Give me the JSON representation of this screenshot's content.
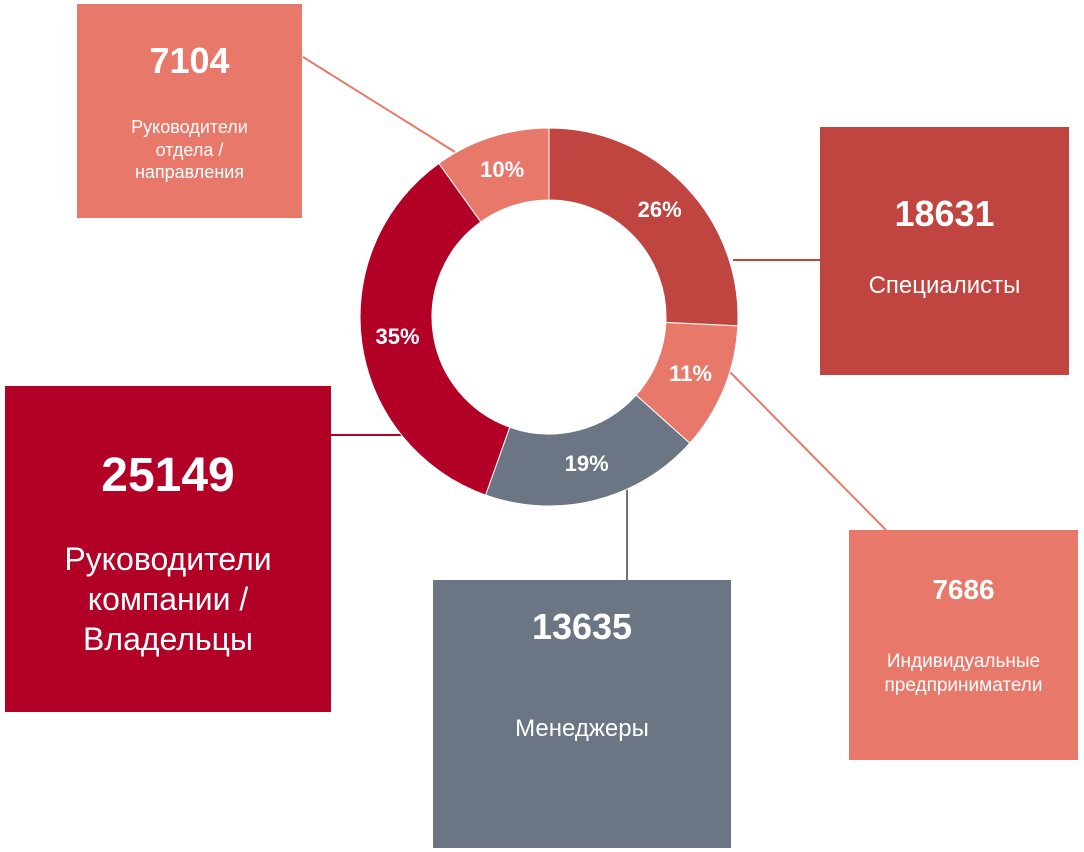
{
  "chart_data": {
    "type": "donut",
    "categories": [
      "Специалисты",
      "Индивидуальные предприниматели",
      "Менеджеры",
      "Руководители компании / Владельцы",
      "Руководители отдела / направления"
    ],
    "values": [
      26,
      11,
      19,
      35,
      10
    ],
    "value_labels": [
      "26%",
      "11%",
      "19%",
      "35%",
      "10%"
    ],
    "counts": [
      18631,
      7686,
      13635,
      25149,
      7104
    ],
    "colors": [
      "#c0443f",
      "#e8796a",
      "#6b7584",
      "#b30026",
      "#e8796a"
    ]
  }
}
